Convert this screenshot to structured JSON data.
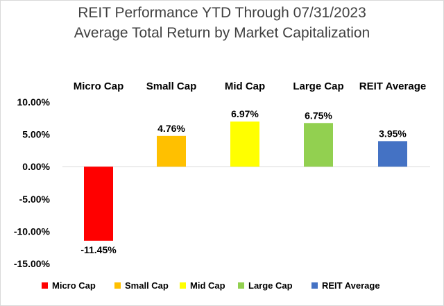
{
  "chart_data": {
    "type": "bar",
    "title": "REIT Performance YTD Through 07/31/2023",
    "subtitle": "Average Total Return by Market Capitalization",
    "categories": [
      "Micro Cap",
      "Small Cap",
      "Mid Cap",
      "Large Cap",
      "REIT Average"
    ],
    "values": [
      -11.45,
      4.76,
      6.97,
      6.75,
      3.95
    ],
    "value_labels": [
      "-11.45%",
      "4.76%",
      "6.97%",
      "6.75%",
      "3.95%"
    ],
    "colors": [
      "#ff0000",
      "#ffc000",
      "#ffff00",
      "#92d050",
      "#4472c4"
    ],
    "ylim": [
      -15,
      10
    ],
    "yticks": [
      10,
      5,
      0,
      -5,
      -10,
      -15
    ],
    "ytick_labels": [
      "10.00%",
      "5.00%",
      "0.00%",
      "-5.00%",
      "-10.00%",
      "-15.00%"
    ],
    "legend": [
      "Micro Cap",
      "Small Cap",
      "Mid Cap",
      "Large Cap",
      "REIT Average"
    ],
    "legend_position": "bottom",
    "grid": false,
    "xlabel": "",
    "ylabel": ""
  }
}
